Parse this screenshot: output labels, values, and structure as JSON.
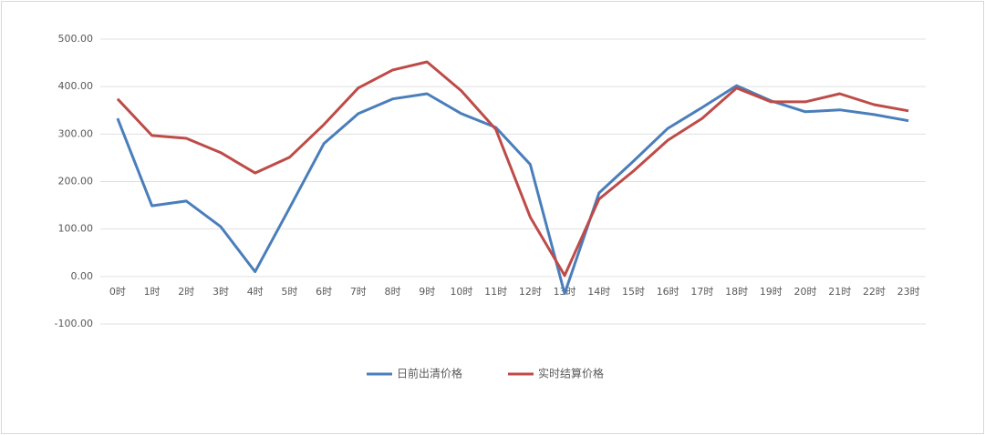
{
  "chart_data": {
    "type": "line",
    "categories": [
      "0时",
      "1时",
      "2时",
      "3时",
      "4时",
      "5时",
      "6时",
      "7时",
      "8时",
      "9时",
      "10时",
      "11时",
      "12时",
      "13时",
      "14时",
      "15时",
      "16时",
      "17时",
      "18时",
      "19时",
      "20时",
      "21时",
      "22时",
      "23时"
    ],
    "series": [
      {
        "name": "日前出清价格",
        "color": "#4a7ebb",
        "values": [
          333,
          149,
          159,
          105,
          10,
          144,
          280,
          343,
          374,
          385,
          343,
          314,
          236,
          -36,
          176,
          243,
          312,
          356,
          402,
          370,
          347,
          351,
          341,
          328
        ]
      },
      {
        "name": "实时结算价格",
        "color": "#be4b48",
        "values": [
          374,
          297,
          291,
          261,
          218,
          251,
          320,
          397,
          435,
          452,
          391,
          310,
          125,
          2,
          163,
          222,
          287,
          333,
          397,
          368,
          368,
          385,
          362,
          349
        ]
      }
    ],
    "ylim": [
      -100,
      500
    ],
    "yticks": [
      {
        "value": -100,
        "label": "-100.00"
      },
      {
        "value": 0,
        "label": "0.00"
      },
      {
        "value": 100,
        "label": "100.00"
      },
      {
        "value": 200,
        "label": "200.00"
      },
      {
        "value": 300,
        "label": "300.00"
      },
      {
        "value": 400,
        "label": "400.00"
      },
      {
        "value": 500,
        "label": "500.00"
      }
    ],
    "grid": true,
    "legend": "bottom"
  }
}
